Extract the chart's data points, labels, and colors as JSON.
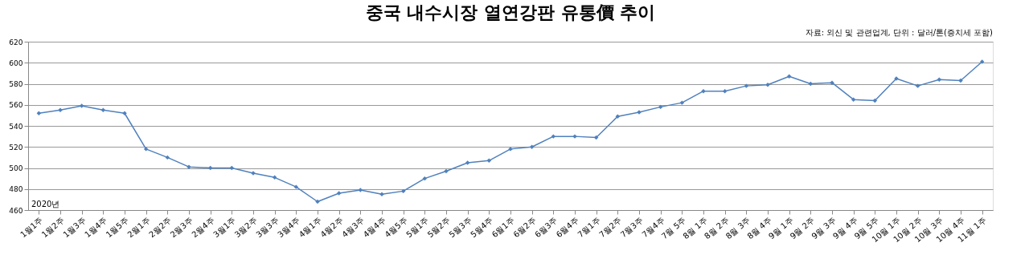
{
  "chart_data": {
    "type": "line",
    "title": "중국 내수시장 열연강판  유통價 추이",
    "categories": [
      "1월1주",
      "1월2주",
      "1월3주",
      "1월4주",
      "1월5주",
      "2월1주",
      "2월2주",
      "2월3주",
      "2월4주",
      "3월1주",
      "3월2주",
      "3월3주",
      "3월4주",
      "4월1주",
      "4월2주",
      "4월3주",
      "4월4주",
      "4월5주",
      "5월1주",
      "5월2주",
      "5월3주",
      "5월4주",
      "6월1주",
      "6월2주",
      "6월3주",
      "6월4주",
      "7월1주",
      "7월2주",
      "7월3주",
      "7월4주",
      "7월 5주",
      "8월 1주",
      "8월 2주",
      "8월 3주",
      "8월 4주",
      "9월 1주",
      "9월 2주",
      "9월 3주",
      "9월 4주",
      "9월 5주",
      "10월 1주",
      "10월 2주",
      "10월 3주",
      "10월 4주",
      "11월 1주"
    ],
    "series": [
      {
        "color": "#4f81bd",
        "values": [
          552,
          555,
          559,
          555,
          552,
          518,
          510,
          501,
          500,
          500,
          495,
          491,
          482,
          468,
          476,
          479,
          475,
          478,
          490,
          497,
          505,
          507,
          518,
          520,
          530,
          530,
          529,
          549,
          553,
          558,
          562,
          573,
          573,
          578,
          579,
          587,
          580,
          581,
          565,
          564,
          585,
          578,
          584,
          583,
          601
        ]
      }
    ],
    "ylim": [
      460,
      620
    ],
    "yticks": [
      460,
      480,
      500,
      520,
      540,
      560,
      580,
      600,
      620
    ],
    "grid": "y",
    "marker": "diamond",
    "line_style": "solid",
    "annotations": [
      "2020년",
      "자료: 외신 및 관련업계, 단위 : 달러/톤(증치세 포함)"
    ]
  }
}
